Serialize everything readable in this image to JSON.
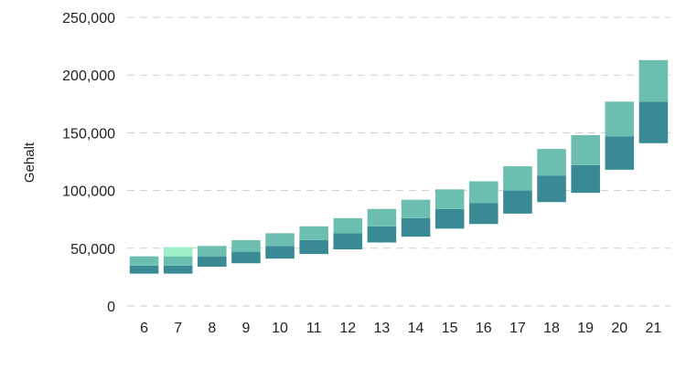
{
  "chart_data": {
    "type": "bar",
    "stacked": true,
    "ylabel": "Gehalt",
    "xlabel": "",
    "ylim": [
      0,
      250000
    ],
    "y_ticks": [
      0,
      50000,
      100000,
      150000,
      200000,
      250000
    ],
    "y_tick_labels": [
      "0",
      "50,000",
      "100,000",
      "150,000",
      "200,000",
      "250,000"
    ],
    "grid": true,
    "categories": [
      "6",
      "7",
      "8",
      "9",
      "10",
      "11",
      "12",
      "13",
      "14",
      "15",
      "16",
      "17",
      "18",
      "19",
      "20",
      "21"
    ],
    "ranges": [
      {
        "low": 28000,
        "mid": 35000,
        "high": 43000
      },
      {
        "low": 28000,
        "mid": 35000,
        "high": 43000,
        "top_extra": 51000
      },
      {
        "low": 34000,
        "mid": 43000,
        "high": 52000
      },
      {
        "low": 37000,
        "mid": 47000,
        "high": 57000
      },
      {
        "low": 41000,
        "mid": 52000,
        "high": 63000
      },
      {
        "low": 45000,
        "mid": 57000,
        "high": 69000
      },
      {
        "low": 49000,
        "mid": 63000,
        "high": 76000
      },
      {
        "low": 55000,
        "mid": 69000,
        "high": 84000
      },
      {
        "low": 60000,
        "mid": 76000,
        "high": 92000
      },
      {
        "low": 67000,
        "mid": 84000,
        "high": 101000
      },
      {
        "low": 71000,
        "mid": 89000,
        "high": 108000
      },
      {
        "low": 80000,
        "mid": 100000,
        "high": 121000
      },
      {
        "low": 90000,
        "mid": 113000,
        "high": 136000
      },
      {
        "low": 98000,
        "mid": 122000,
        "high": 148000
      },
      {
        "low": 118000,
        "mid": 147000,
        "high": 177000
      },
      {
        "low": 141000,
        "mid": 177000,
        "high": 213000
      }
    ],
    "colors": {
      "lower": "#398a94",
      "upper": "#6cbfb0",
      "highlight": "#9defc8",
      "grid": "#cccccc",
      "text": "#222222"
    }
  }
}
